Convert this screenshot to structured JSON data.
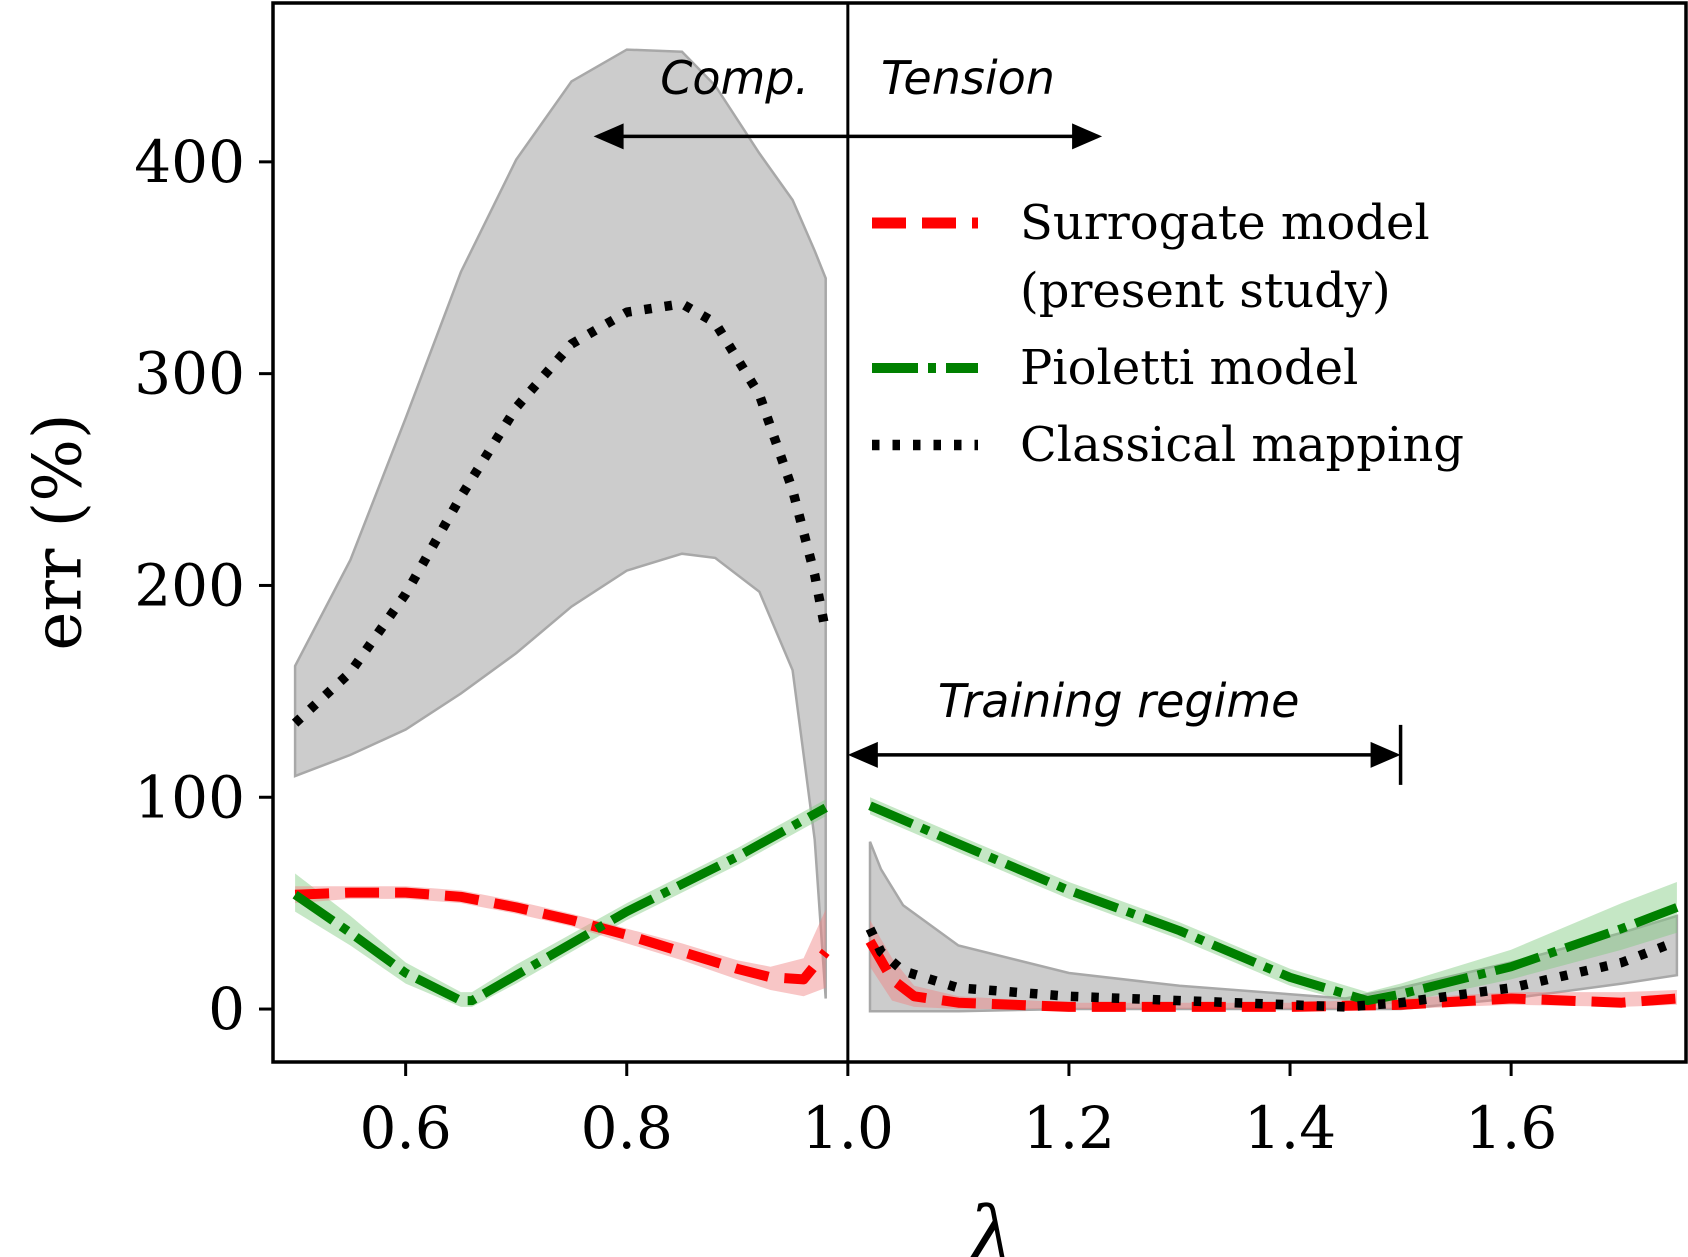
{
  "chart_data": {
    "type": "line",
    "title": "",
    "xlabel": "λ",
    "ylabel": "err (%)",
    "xlim": [
      0.48,
      1.76
    ],
    "ylim": [
      -25,
      475
    ],
    "xticks": [
      0.6,
      0.8,
      1.0,
      1.2,
      1.4,
      1.6
    ],
    "xtick_labels": [
      "0.6",
      "0.8",
      "1.0",
      "1.2",
      "1.4",
      "1.6"
    ],
    "yticks": [
      0,
      100,
      200,
      300,
      400
    ],
    "ytick_labels": [
      "0",
      "100",
      "200",
      "300",
      "400"
    ],
    "divider_x": 1.0,
    "annotations": {
      "comp_label": "Comp.",
      "tension_label": "Tension",
      "training_label": "Training regime",
      "comp_tension_arrow": [
        0.77,
        1.23
      ],
      "training_arrow": [
        1.0,
        1.5
      ]
    },
    "legend": {
      "placement": "upper-right",
      "entries": [
        {
          "line1": "Surrogate model",
          "line2": "(present study)",
          "series": "surrogate"
        },
        {
          "line1": "Pioletti model",
          "line2": "",
          "series": "pioletti"
        },
        {
          "line1": "Classical mapping",
          "line2": "",
          "series": "classical"
        }
      ]
    },
    "series": [
      {
        "name": "Surrogate model (present study)",
        "key": "surrogate",
        "color": "#ff0000",
        "band_color": "#f08080",
        "style": "dashed",
        "segments": [
          {
            "x": [
              0.5,
              0.55,
              0.6,
              0.65,
              0.7,
              0.75,
              0.8,
              0.85,
              0.9,
              0.93,
              0.96,
              0.98
            ],
            "y": [
              54,
              55,
              55,
              53,
              48,
              42,
              35,
              27,
              19,
              15,
              14,
              27
            ],
            "lower": [
              50,
              52,
              52,
              50,
              45,
              39,
              31,
              23,
              14,
              9,
              6,
              10
            ],
            "upper": [
              58,
              58,
              58,
              56,
              51,
              45,
              38,
              31,
              23,
              20,
              24,
              47
            ]
          },
          {
            "x": [
              1.02,
              1.04,
              1.06,
              1.1,
              1.2,
              1.3,
              1.4,
              1.5,
              1.6,
              1.7,
              1.75
            ],
            "y": [
              32,
              14,
              6,
              3,
              1,
              1,
              1,
              2,
              5,
              3,
              5
            ],
            "lower": [
              20,
              4,
              1,
              0,
              0,
              0,
              0,
              0,
              2,
              1,
              2
            ],
            "upper": [
              42,
              24,
              11,
              6,
              3,
              3,
              3,
              5,
              8,
              8,
              9
            ]
          }
        ]
      },
      {
        "name": "Pioletti model",
        "key": "pioletti",
        "color": "#008000",
        "band_color": "#7fc97f",
        "style": "dashdot",
        "segments": [
          {
            "x": [
              0.5,
              0.55,
              0.6,
              0.65,
              0.66,
              0.7,
              0.8,
              0.9,
              0.98
            ],
            "y": [
              54,
              36,
              17,
              4,
              4,
              16,
              46,
              72,
              95
            ],
            "lower": [
              46,
              30,
              12,
              1,
              1,
              12,
              42,
              68,
              91
            ],
            "upper": [
              64,
              44,
              22,
              8,
              8,
              21,
              50,
              76,
              99
            ]
          },
          {
            "x": [
              1.02,
              1.1,
              1.2,
              1.3,
              1.4,
              1.47,
              1.5,
              1.6,
              1.7,
              1.75
            ],
            "y": [
              96,
              78,
              56,
              37,
              15,
              4,
              7,
              20,
              38,
              48
            ],
            "lower": [
              92,
              74,
              52,
              33,
              11,
              1,
              3,
              14,
              28,
              36
            ],
            "upper": [
              100,
              82,
              60,
              41,
              19,
              8,
              12,
              28,
              50,
              60
            ]
          }
        ]
      },
      {
        "name": "Classical mapping",
        "key": "classical",
        "color": "#000000",
        "band_color": "#cccccc",
        "style": "dotted",
        "segments": [
          {
            "x": [
              0.5,
              0.55,
              0.6,
              0.65,
              0.7,
              0.75,
              0.8,
              0.85,
              0.88,
              0.92,
              0.95,
              0.97,
              0.98
            ],
            "y": [
              135,
              159,
              196,
              242,
              284,
              314,
              329,
              333,
              324,
              290,
              245,
              205,
              178
            ],
            "lower": [
              110,
              120,
              132,
              149,
              168,
              190,
              207,
              215,
              213,
              197,
              160,
              80,
              5
            ],
            "upper": [
              162,
              212,
              279,
              348,
              401,
              438,
              453,
              452,
              436,
              404,
              382,
              358,
              345
            ]
          },
          {
            "x": [
              1.02,
              1.03,
              1.05,
              1.1,
              1.2,
              1.3,
              1.4,
              1.45,
              1.5,
              1.6,
              1.7,
              1.75
            ],
            "y": [
              38,
              27,
              18,
              10,
              6,
              4,
              2,
              1,
              3,
              10,
              22,
              32
            ],
            "lower": [
              -1,
              -1,
              -1,
              -1,
              0,
              0,
              0,
              0,
              0,
              5,
              12,
              16
            ],
            "upper": [
              79,
              66,
              49,
              30,
              17,
              11,
              7,
              5,
              10,
              22,
              36,
              44
            ]
          }
        ]
      }
    ]
  }
}
